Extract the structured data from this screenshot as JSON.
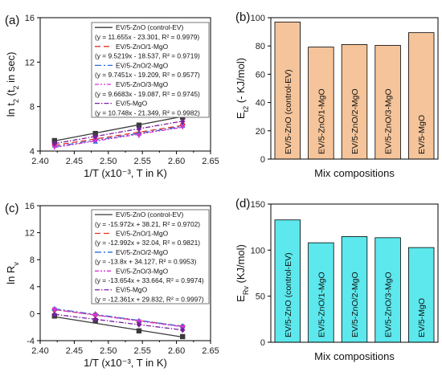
{
  "chart_data": [
    {
      "id": "a",
      "type": "line",
      "panel_label": "(a)",
      "xlabel": "1/T (x10⁻³, T in K)",
      "ylabel_main": "ln t",
      "ylabel_sub": "2",
      "ylabel_paren": " (t",
      "ylabel_paren_sub": "2",
      "ylabel_tail": " in sec)",
      "xlim": [
        2.4,
        2.65
      ],
      "ylim": [
        4,
        16
      ],
      "xticks": [
        "2.40",
        "2.45",
        "2.50",
        "2.55",
        "2.60",
        "2.65"
      ],
      "yticks": [
        "4",
        "8",
        "12",
        "16"
      ],
      "x": [
        2.421,
        2.481,
        2.545,
        2.609
      ],
      "series": [
        {
          "name": "EV/5-ZnO (control-EV)",
          "fit": "(y = 11.655x - 23.301, R² = 0.9979)",
          "slope": 11.655,
          "intercept": -23.301,
          "color": "#3a3a3a",
          "dash": "",
          "marker": "square",
          "values": [
            4.94,
            5.58,
            6.33,
            7.05
          ]
        },
        {
          "name": "EV/5-ZnO/1-MgO",
          "fit": "(y = 9.5219x - 18.537, R² = 0.9719)",
          "slope": 9.5219,
          "intercept": -18.537,
          "color": "#e8302a",
          "dash": "7,4",
          "marker": "circle",
          "values": [
            4.56,
            5.05,
            5.57,
            6.36
          ]
        },
        {
          "name": "EV/5-ZnO/2-MgO",
          "fit": "(y = 9.7451x - 19.209, R² = 0.9577)",
          "slope": 9.7451,
          "intercept": -19.209,
          "color": "#2a6fd6",
          "dash": "8,3,2,3",
          "marker": "triangle",
          "values": [
            4.51,
            4.86,
            5.58,
            6.28
          ]
        },
        {
          "name": "EV/5-ZnO/3-MgO",
          "fit": "(y = 9.6683x - 19.087, R² = 0.9745)",
          "slope": 9.6683,
          "intercept": -19.087,
          "color": "#d633d6",
          "dash": "5,2,2,2,2,2",
          "marker": "triangle-down",
          "values": [
            4.36,
            4.93,
            5.41,
            6.17
          ]
        },
        {
          "name": "EV/5-MgO",
          "fit": "(y = 10.748x - 21.349, R² = 0.9982)",
          "slope": 10.748,
          "intercept": -21.349,
          "color": "#7a1fa0",
          "dash": "6,2,1.5,2",
          "marker": "diamond",
          "values": [
            4.67,
            5.29,
            5.99,
            6.67
          ]
        }
      ]
    },
    {
      "id": "b",
      "type": "bar",
      "panel_label": "(b)",
      "xlabel": "Mix compositions",
      "ylabel_main": "E",
      "ylabel_sub": "t2",
      "ylabel_tail": " (- KJ/mol)",
      "ylim": [
        0,
        100
      ],
      "yticks": [
        "0",
        "20",
        "40",
        "60",
        "80",
        "100"
      ],
      "bar_color": "#f5c49a",
      "categories": [
        "EV/5-ZnO (control-EV)",
        "EV/5-ZnO/1-MgO",
        "EV/5-ZnO/2-MgO",
        "EV/5-ZnO/3-MgO",
        "EV/5-MgO"
      ],
      "values": [
        96.9,
        79.2,
        81.0,
        80.4,
        89.4
      ]
    },
    {
      "id": "c",
      "type": "line",
      "panel_label": "(c)",
      "xlabel": "1/T (x10⁻³, T in K)",
      "ylabel_main": "ln R",
      "ylabel_sub": "v",
      "ylim": [
        -4,
        16
      ],
      "xlim": [
        2.4,
        2.65
      ],
      "xticks": [
        "2.40",
        "2.45",
        "2.50",
        "2.55",
        "2.60",
        "2.65"
      ],
      "yticks": [
        "-4",
        "0",
        "4",
        "8",
        "12",
        "16"
      ],
      "x": [
        2.421,
        2.481,
        2.545,
        2.609
      ],
      "series": [
        {
          "name": "EV/5-ZnO (control-EV)",
          "fit": "(y = -15.972x + 38.21, R² = 0.9702)",
          "slope": -15.972,
          "intercept": 38.21,
          "color": "#3a3a3a",
          "dash": "",
          "marker": "square",
          "values": [
            -0.35,
            -1.05,
            -2.55,
            -3.4
          ]
        },
        {
          "name": "EV/5-ZnO/1-MgO",
          "fit": "(y = -12.992x + 32.04, R² = 0.9821)",
          "slope": -12.992,
          "intercept": 32.04,
          "color": "#e8302a",
          "dash": "7,4",
          "marker": "circle",
          "values": [
            0.6,
            -0.15,
            -1.25,
            -1.9
          ]
        },
        {
          "name": "EV/5-ZnO/2-MgO",
          "fit": "(y = -13.8x + 34.127, R² = 0.9953)",
          "slope": -13.8,
          "intercept": 34.127,
          "color": "#2a6fd6",
          "dash": "8,3,2,3",
          "marker": "triangle",
          "values": [
            0.72,
            -0.05,
            -1.05,
            -1.85
          ]
        },
        {
          "name": "EV/5-ZnO/3-MgO",
          "fit": "(y = -13.654x + 33.664, R² = 0.9974)",
          "slope": -13.654,
          "intercept": 33.664,
          "color": "#d633d6",
          "dash": "5,2,2,2,2,2",
          "marker": "triangle-down",
          "values": [
            0.6,
            -0.25,
            -1.15,
            -2.05
          ]
        },
        {
          "name": "EV/5-MgO",
          "fit": "(y = -12.361x + 29.832, R² = 0.9997)",
          "slope": -12.361,
          "intercept": 29.832,
          "color": "#7a1fa0",
          "dash": "6,2,1.5,2",
          "marker": "diamond",
          "values": [
            -0.1,
            -0.85,
            -1.62,
            -2.42
          ]
        }
      ]
    },
    {
      "id": "d",
      "type": "bar",
      "panel_label": "(d)",
      "xlabel": "Mix compositions",
      "ylabel_main": "E",
      "ylabel_sub": "Rv",
      "ylabel_tail": " (KJ/mol)",
      "ylim": [
        0,
        150
      ],
      "yticks": [
        "0",
        "50",
        "100",
        "150"
      ],
      "bar_color": "#5ce8ec",
      "categories": [
        "EV/5-ZnO (control-EV)",
        "EV/5-ZnO/1-MgO",
        "EV/5-ZnO/2-MgO",
        "EV/5-ZnO/3-MgO",
        "EV/5-MgO"
      ],
      "values": [
        132.8,
        108.0,
        114.7,
        113.5,
        102.8
      ]
    }
  ]
}
